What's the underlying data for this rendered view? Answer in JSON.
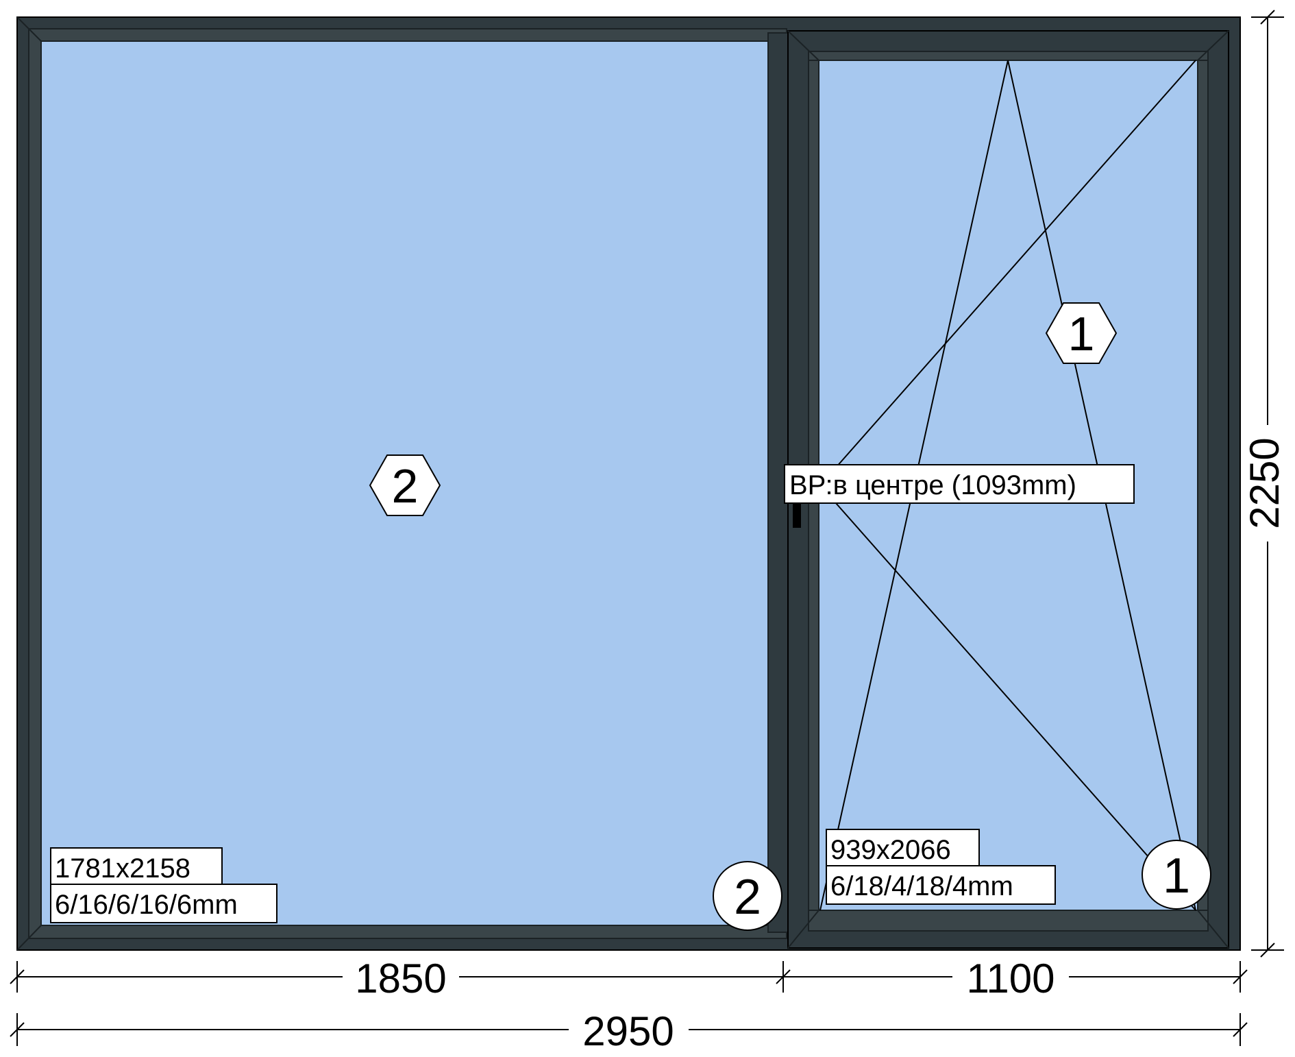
{
  "colors": {
    "frame": "#2f3a3f",
    "frame_inner": "#3a4549",
    "glass": "#a7c8ef",
    "line": "#000000",
    "label_bg": "#ffffff"
  },
  "dimensions": {
    "total_width": "2950",
    "left_width": "1850",
    "right_width": "1100",
    "height": "2250"
  },
  "left_pane": {
    "marker_hex": "2",
    "marker_circle": "2",
    "size": "1781x2158",
    "glass": "6/16/6/16/6mm"
  },
  "right_pane": {
    "marker_hex": "1",
    "marker_circle": "1",
    "size": "939x2066",
    "glass": "6/18/4/18/4mm",
    "handle_note": "ВР:в центре (1093mm)"
  }
}
